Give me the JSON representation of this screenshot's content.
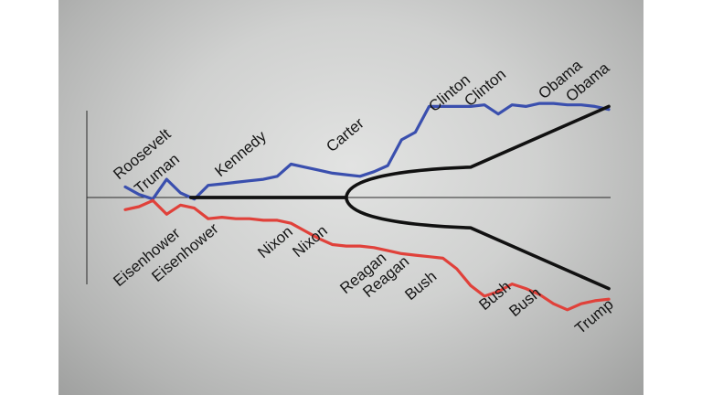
{
  "chart_data": {
    "type": "line",
    "title": "",
    "xlabel": "",
    "ylabel": "",
    "grid": false,
    "legend": "none",
    "x": [
      1946,
      1948,
      1950,
      1952,
      1954,
      1956,
      1958,
      1960,
      1962,
      1964,
      1966,
      1968,
      1970,
      1972,
      1974,
      1976,
      1978,
      1980,
      1982,
      1984,
      1986,
      1988,
      1990,
      1992,
      1994,
      1996,
      1998,
      2000,
      2002,
      2004,
      2006,
      2008,
      2010,
      2012,
      2014,
      2016
    ],
    "xlim": [
      1946,
      2016
    ],
    "ylim": [
      -1,
      1
    ],
    "series": [
      {
        "name": "",
        "color": "#3a4fae",
        "values": [
          0.07,
          0.02,
          -0.01,
          0.12,
          0.03,
          -0.01,
          0.08,
          0.09,
          0.1,
          0.11,
          0.12,
          0.14,
          0.22,
          0.2,
          0.18,
          0.16,
          0.15,
          0.14,
          0.17,
          0.21,
          0.38,
          0.43,
          0.6,
          0.6,
          0.6,
          0.6,
          0.61,
          0.55,
          0.61,
          0.6,
          0.62,
          0.62,
          0.61,
          0.61,
          0.6,
          0.58
        ]
      },
      {
        "name": "",
        "color": "#e0413a",
        "values": [
          -0.08,
          -0.06,
          -0.02,
          -0.11,
          -0.05,
          -0.07,
          -0.14,
          -0.13,
          -0.14,
          -0.14,
          -0.15,
          -0.15,
          -0.17,
          -0.22,
          -0.27,
          -0.31,
          -0.32,
          -0.32,
          -0.33,
          -0.35,
          -0.37,
          -0.38,
          -0.39,
          -0.4,
          -0.47,
          -0.58,
          -0.65,
          -0.62,
          -0.57,
          -0.6,
          -0.64,
          -0.7,
          -0.74,
          -0.7,
          -0.68,
          -0.67
        ]
      }
    ],
    "trend_lines": [
      {
        "x": [
          1955.5,
          1978,
          1996,
          2016
        ],
        "values": [
          0,
          0,
          0.2,
          0.6
        ]
      },
      {
        "x": [
          1955.5,
          1978,
          1996,
          2016
        ],
        "values": [
          0,
          0,
          -0.2,
          -0.6
        ]
      }
    ],
    "annotations_top": [
      {
        "text": "Roosevelt",
        "x": 1946
      },
      {
        "text": "Truman",
        "x": 1949
      },
      {
        "text": "Kennedy",
        "x": 1959
      },
      {
        "text": "Carter",
        "x": 1975
      },
      {
        "text": "Clinton",
        "x": 1992
      },
      {
        "text": "Clinton",
        "x": 1996
      },
      {
        "text": "Obama",
        "x": 2007
      },
      {
        "text": "Obama",
        "x": 2011
      }
    ],
    "annotations_bottom": [
      {
        "text": "Eisenhower",
        "x": 1950
      },
      {
        "text": "Eisenhower",
        "x": 1957
      },
      {
        "text": "Nixon",
        "x": 1964
      },
      {
        "text": "Nixon",
        "x": 1972
      },
      {
        "text": "Reagan",
        "x": 1981
      },
      {
        "text": "Reagan",
        "x": 1985
      },
      {
        "text": "Bush",
        "x": 1989
      },
      {
        "text": "Bush",
        "x": 2001
      },
      {
        "text": "Bush",
        "x": 2005
      },
      {
        "text": "Trump",
        "x": 2017
      }
    ]
  }
}
